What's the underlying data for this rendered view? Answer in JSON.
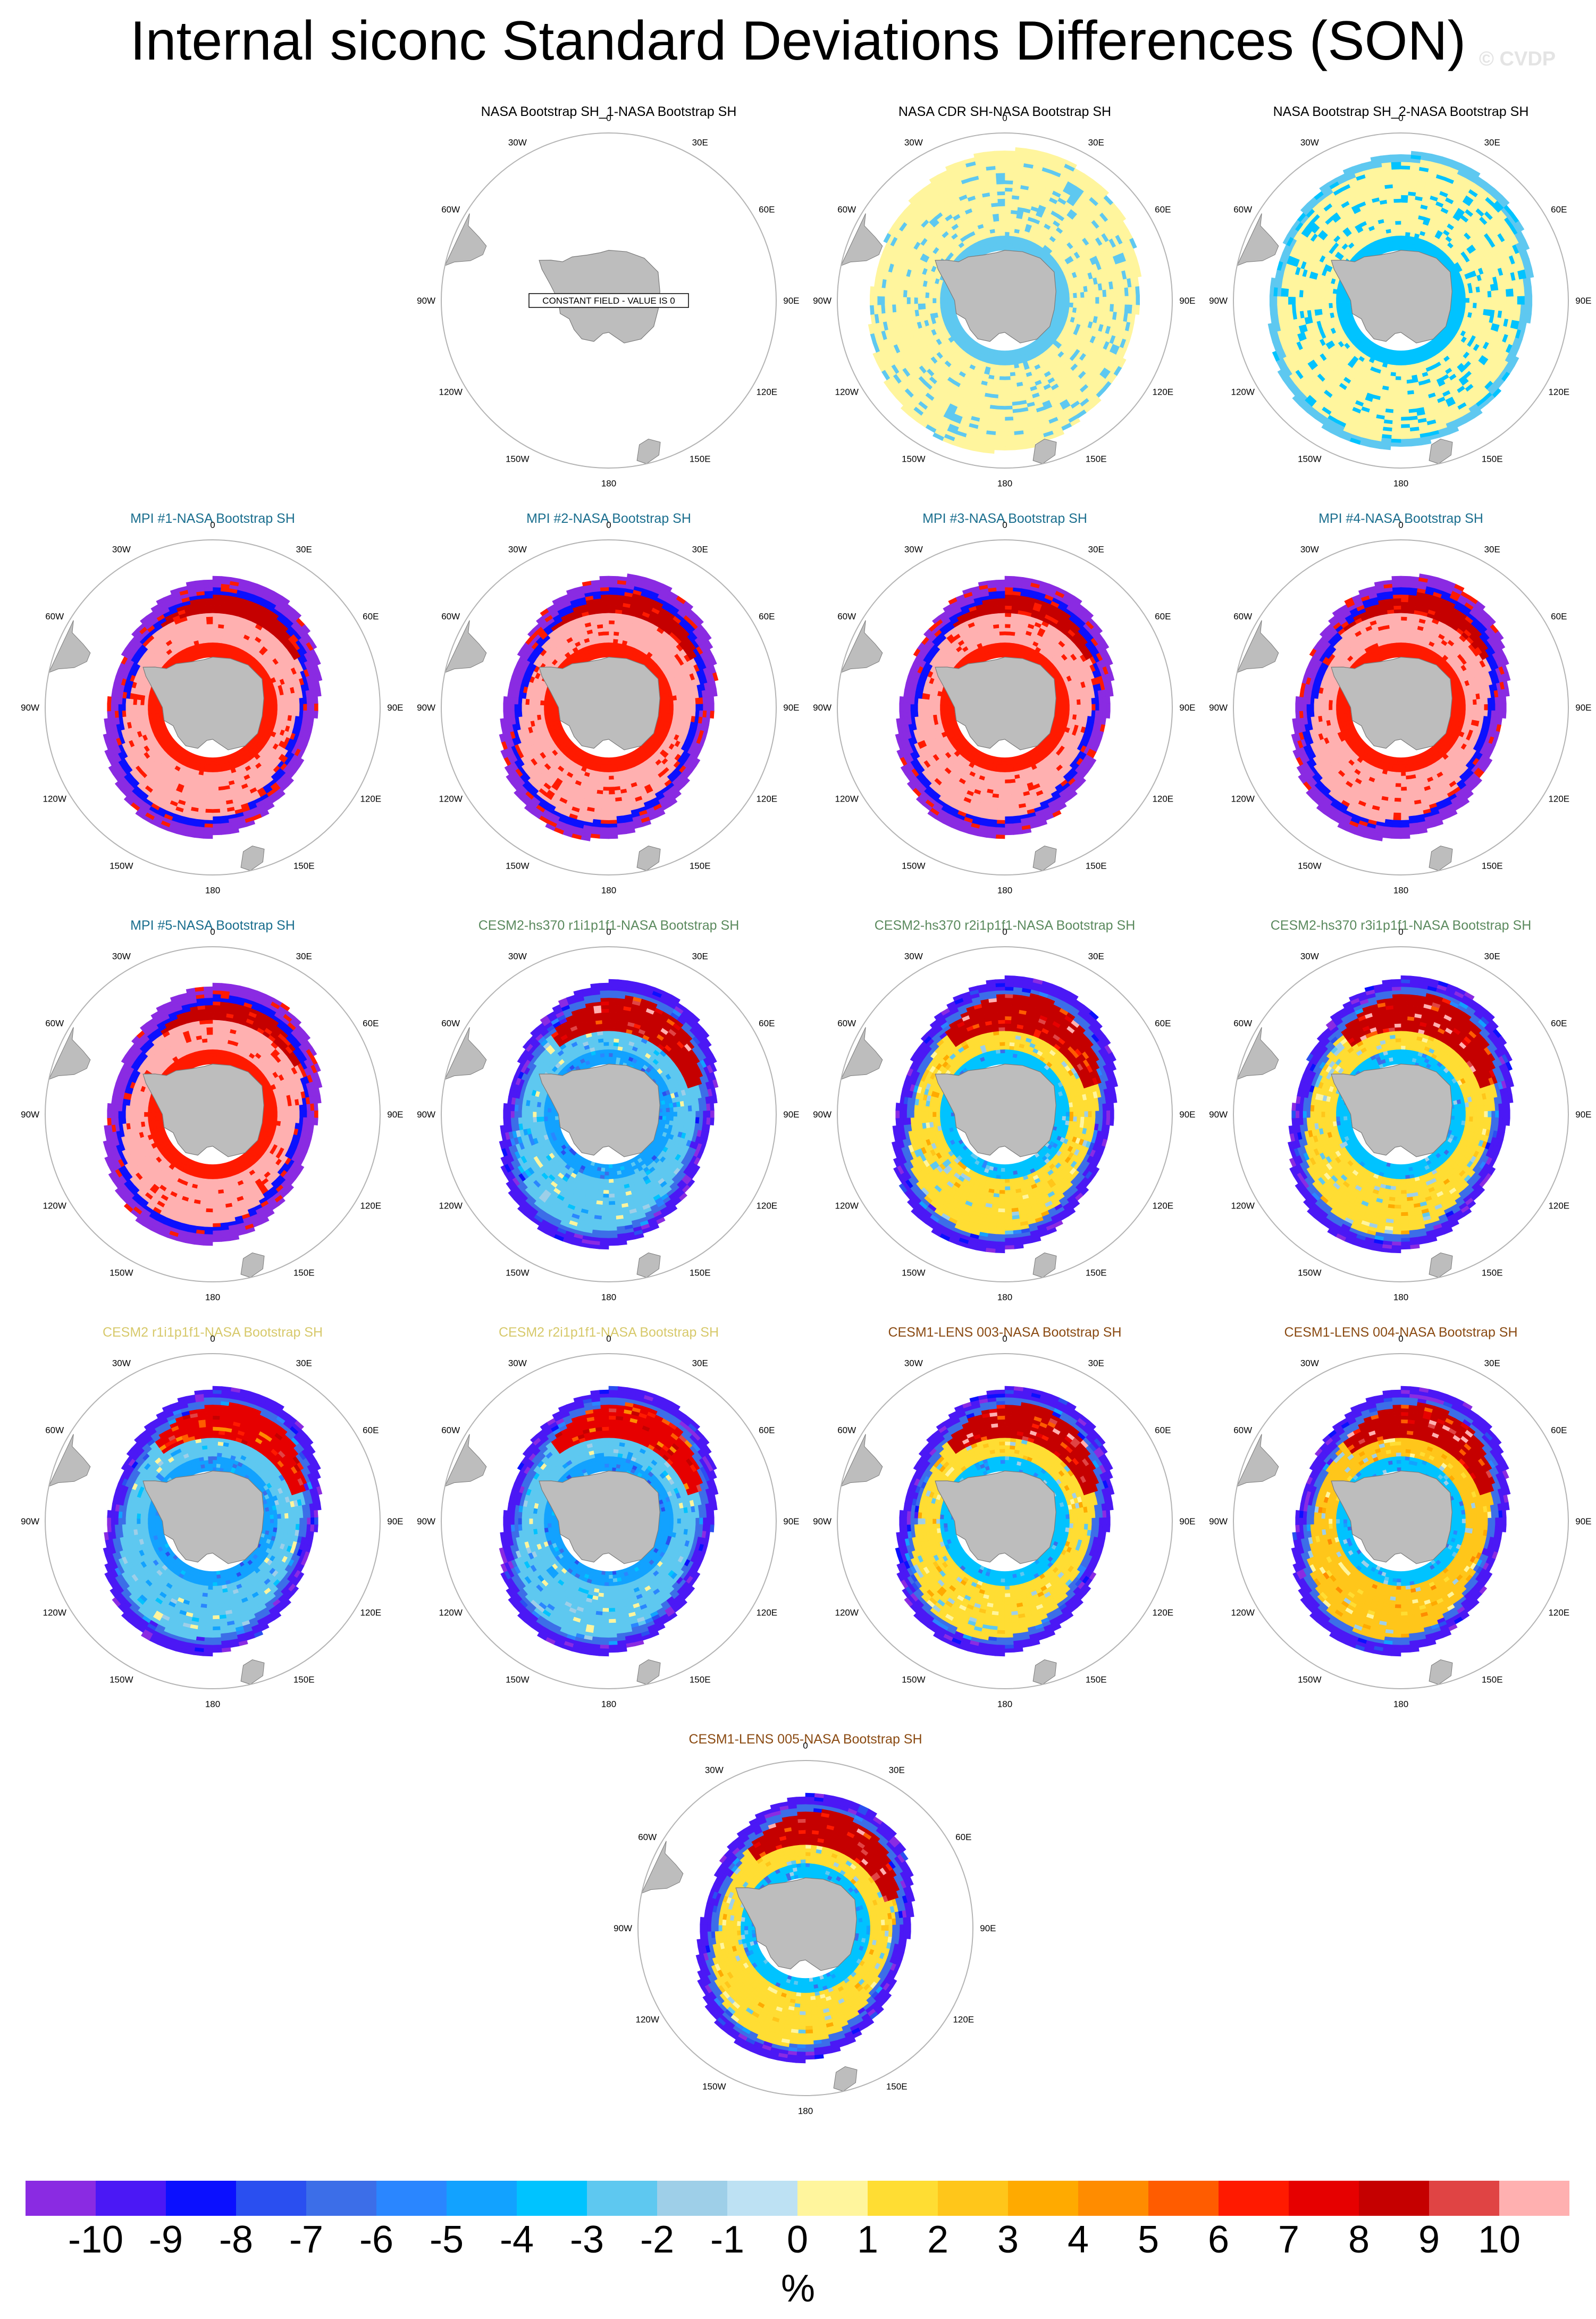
{
  "page": {
    "title": "Internal siconc Standard Deviations Differences (SON)",
    "copyright": "© CVDP",
    "units": "%"
  },
  "longitude_labels": [
    "0",
    "30E",
    "60E",
    "90E",
    "120E",
    "150E",
    "180",
    "150W",
    "120W",
    "90W",
    "60W",
    "30W"
  ],
  "colors": {
    "ocean_bg": "#ffffff",
    "land": "#bdbdbd",
    "land_outline": "#7a7a7a",
    "circle": "#b4b4b4",
    "title_black": "#000000",
    "title_mpi": "#1a6e8e",
    "title_cesm2hs": "#5b8a5e",
    "title_cesm2": "#d7c96b",
    "title_cesm1": "#8a4a12"
  },
  "chart_data": [
    {
      "type": "heatmap",
      "title": "NASA Bootstrap SH_1-NASA Bootstrap SH",
      "title_color": "#000000",
      "pattern": "constant",
      "annotation": "CONSTANT FIELD - VALUE IS 0",
      "field": {
        "ice_edge_max": 0,
        "ice_edge_min": 0,
        "outer_band": 0,
        "outer_band2": 0,
        "inner_ring": 0,
        "interior": 0,
        "red_patch": 0
      }
    },
    {
      "type": "heatmap",
      "title": "NASA CDR SH-NASA Bootstrap SH",
      "title_color": "#000000",
      "pattern": "obs",
      "field": {
        "ice_edge_max": 0.9,
        "ice_edge_min": 0.78,
        "outer_band": 0.5,
        "outer_band2": 0.5,
        "inner_ring": -1.5,
        "interior": 0.5,
        "red_patch": 0.5
      }
    },
    {
      "type": "heatmap",
      "title": "NASA Bootstrap SH_2-NASA Bootstrap SH",
      "title_color": "#000000",
      "pattern": "obs",
      "field": {
        "ice_edge_max": 0.88,
        "ice_edge_min": 0.76,
        "outer_band": 0.5,
        "outer_band2": -2,
        "inner_ring": -2.5,
        "interior": 0.5,
        "red_patch": 0.5
      }
    },
    {
      "type": "heatmap",
      "title": "MPI #1-NASA Bootstrap SH",
      "title_color": "#1a6e8e",
      "pattern": "mpi",
      "field": {
        "ice_edge_max": 0.78,
        "ice_edge_min": 0.6,
        "outer_band": -10,
        "outer_band2": -8,
        "inner_ring": 6,
        "interior": 10,
        "red_patch": 8
      }
    },
    {
      "type": "heatmap",
      "title": "MPI #2-NASA Bootstrap SH",
      "title_color": "#1a6e8e",
      "pattern": "mpi",
      "field": {
        "ice_edge_max": 0.79,
        "ice_edge_min": 0.6,
        "outer_band": -10,
        "outer_band2": -8,
        "inner_ring": 6,
        "interior": 10,
        "red_patch": 8
      }
    },
    {
      "type": "heatmap",
      "title": "MPI #3-NASA Bootstrap SH",
      "title_color": "#1a6e8e",
      "pattern": "mpi",
      "field": {
        "ice_edge_max": 0.78,
        "ice_edge_min": 0.6,
        "outer_band": -10,
        "outer_band2": -8,
        "inner_ring": 6,
        "interior": 10,
        "red_patch": 8
      }
    },
    {
      "type": "heatmap",
      "title": "MPI #4-NASA Bootstrap SH",
      "title_color": "#1a6e8e",
      "pattern": "mpi",
      "field": {
        "ice_edge_max": 0.79,
        "ice_edge_min": 0.6,
        "outer_band": -10,
        "outer_band2": -8,
        "inner_ring": 6,
        "interior": 10,
        "red_patch": 8
      }
    },
    {
      "type": "heatmap",
      "title": "MPI #5-NASA Bootstrap SH",
      "title_color": "#1a6e8e",
      "pattern": "mpi",
      "field": {
        "ice_edge_max": 0.78,
        "ice_edge_min": 0.6,
        "outer_band": -10,
        "outer_band2": -8,
        "inner_ring": 6,
        "interior": 10,
        "red_patch": 8
      }
    },
    {
      "type": "heatmap",
      "title": "CESM2-hs370 r1i1p1f1-NASA Bootstrap SH",
      "title_color": "#5b8a5e",
      "pattern": "cesm",
      "field": {
        "ice_edge_max": 0.8,
        "ice_edge_min": 0.6,
        "outer_band": -9,
        "outer_band2": -6,
        "inner_ring": -4,
        "interior": -2,
        "red_patch": 8
      }
    },
    {
      "type": "heatmap",
      "title": "CESM2-hs370 r2i1p1f1-NASA Bootstrap SH",
      "title_color": "#5b8a5e",
      "pattern": "cesm",
      "field": {
        "ice_edge_max": 0.82,
        "ice_edge_min": 0.62,
        "outer_band": -9,
        "outer_band2": -6,
        "inner_ring": -3,
        "interior": 1,
        "red_patch": 8
      }
    },
    {
      "type": "heatmap",
      "title": "CESM2-hs370 r3i1p1f1-NASA Bootstrap SH",
      "title_color": "#5b8a5e",
      "pattern": "cesm",
      "field": {
        "ice_edge_max": 0.82,
        "ice_edge_min": 0.62,
        "outer_band": -9,
        "outer_band2": -6,
        "inner_ring": -3,
        "interior": 1,
        "red_patch": 8
      }
    },
    {
      "type": "heatmap",
      "title": "CESM2 r1i1p1f1-NASA Bootstrap SH",
      "title_color": "#d7c96b",
      "pattern": "cesm",
      "field": {
        "ice_edge_max": 0.8,
        "ice_edge_min": 0.6,
        "outer_band": -9,
        "outer_band2": -6,
        "inner_ring": -4,
        "interior": -2,
        "red_patch": 7
      }
    },
    {
      "type": "heatmap",
      "title": "CESM2 r2i1p1f1-NASA Bootstrap SH",
      "title_color": "#d7c96b",
      "pattern": "cesm",
      "field": {
        "ice_edge_max": 0.8,
        "ice_edge_min": 0.6,
        "outer_band": -9,
        "outer_band2": -6,
        "inner_ring": -4,
        "interior": -2,
        "red_patch": 7
      }
    },
    {
      "type": "heatmap",
      "title": "CESM1-LENS 003-NASA Bootstrap SH",
      "title_color": "#8a4a12",
      "pattern": "cesm",
      "field": {
        "ice_edge_max": 0.8,
        "ice_edge_min": 0.6,
        "outer_band": -9,
        "outer_band2": -6,
        "inner_ring": -3,
        "interior": 1,
        "red_patch": 8
      }
    },
    {
      "type": "heatmap",
      "title": "CESM1-LENS 004-NASA Bootstrap SH",
      "title_color": "#8a4a12",
      "pattern": "cesm",
      "field": {
        "ice_edge_max": 0.8,
        "ice_edge_min": 0.6,
        "outer_band": -9,
        "outer_band2": -6,
        "inner_ring": -3,
        "interior": 2,
        "red_patch": 8
      }
    },
    {
      "type": "heatmap",
      "title": "CESM1-LENS 005-NASA Bootstrap SH",
      "title_color": "#8a4a12",
      "pattern": "cesm",
      "field": {
        "ice_edge_max": 0.8,
        "ice_edge_min": 0.6,
        "outer_band": -9,
        "outer_band2": -6,
        "inner_ring": -3,
        "interior": 1,
        "red_patch": 8
      }
    }
  ],
  "colorbar": {
    "ticks": [
      "-10",
      "-9",
      "-8",
      "-7",
      "-6",
      "-5",
      "-4",
      "-3",
      "-2",
      "-1",
      "0",
      "1",
      "2",
      "3",
      "4",
      "5",
      "6",
      "7",
      "8",
      "9",
      "10"
    ],
    "colors": [
      "#8a2be2",
      "#4b18f5",
      "#0b10ff",
      "#2a4ff0",
      "#3c6ee8",
      "#2a86ff",
      "#12a2ff",
      "#00c3ff",
      "#5ec8f0",
      "#9ecfe8",
      "#bde1f3",
      "#fff59d",
      "#ffdd33",
      "#ffc61a",
      "#ffaa00",
      "#ff8c00",
      "#ff5c00",
      "#ff1a00",
      "#e60000",
      "#c50000",
      "#e04444",
      "#ffb0b0"
    ]
  }
}
